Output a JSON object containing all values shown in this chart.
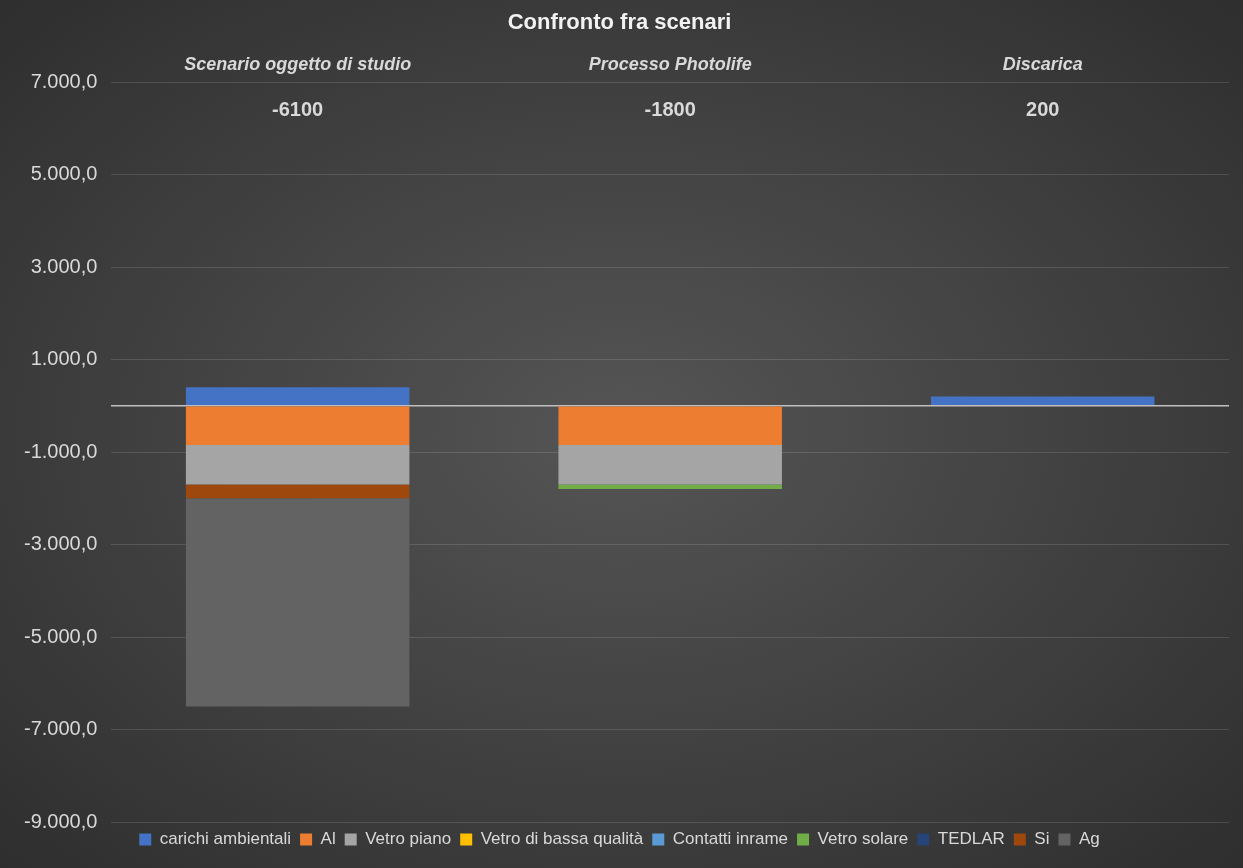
{
  "chart_data": {
    "type": "bar",
    "title": "Confronto fra scenari",
    "stacked": true,
    "categories": [
      "Scenario oggetto di studio",
      "Processo Photolife",
      "Discarica"
    ],
    "series": [
      {
        "name": "carichi ambientali",
        "color": "#4472c4",
        "values": [
          400,
          0,
          200
        ]
      },
      {
        "name": "Al",
        "color": "#ed7d31",
        "values": [
          -850,
          -850,
          0
        ]
      },
      {
        "name": "Vetro piano",
        "color": "#a5a5a5",
        "values": [
          -850,
          -850,
          0
        ]
      },
      {
        "name": "Vetro di bassa qualità",
        "color": "#ffc000",
        "values": [
          0,
          0,
          0
        ]
      },
      {
        "name": "Contatti inrame",
        "color": "#5b9bd5",
        "values": [
          0,
          0,
          0
        ]
      },
      {
        "name": "Vetro solare",
        "color": "#70ad47",
        "values": [
          0,
          -100,
          0
        ]
      },
      {
        "name": "TEDLAR",
        "color": "#264478",
        "values": [
          0,
          0,
          0
        ]
      },
      {
        "name": "Si",
        "color": "#9e480e",
        "values": [
          -300,
          0,
          0
        ]
      },
      {
        "name": "Ag",
        "color": "#636363",
        "values": [
          -4500,
          0,
          0
        ]
      }
    ],
    "annotations": [
      "-6100",
      "-1800",
      "200"
    ],
    "ylim": [
      -9000,
      7000
    ],
    "yticks": [
      {
        "value": -9000,
        "label": "-9.000,0"
      },
      {
        "value": -7000,
        "label": "-7.000,0"
      },
      {
        "value": -5000,
        "label": "-5.000,0"
      },
      {
        "value": -3000,
        "label": "-3.000,0"
      },
      {
        "value": -1000,
        "label": "-1.000,0"
      },
      {
        "value": 1000,
        "label": "1.000,0"
      },
      {
        "value": 3000,
        "label": "3.000,0"
      },
      {
        "value": 5000,
        "label": "5.000,0"
      },
      {
        "value": 7000,
        "label": "7.000,0"
      }
    ],
    "grid": "y",
    "legend": "bottom"
  }
}
